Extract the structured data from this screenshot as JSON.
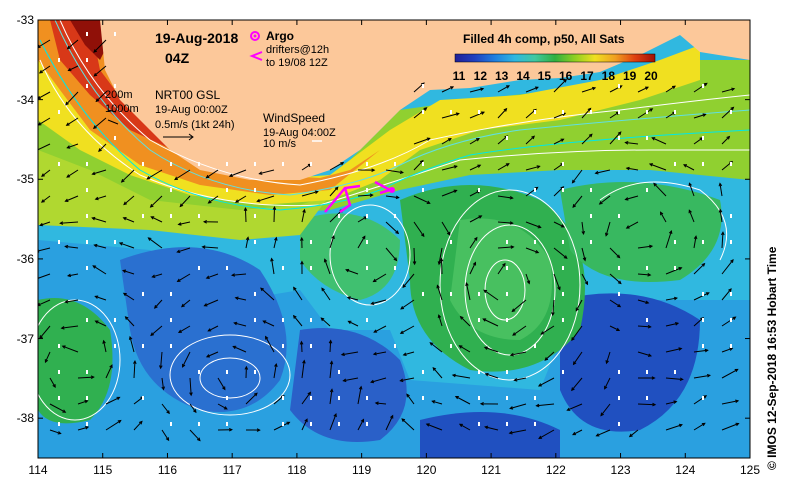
{
  "title": {
    "date": "19-Aug-2018",
    "hour": "04Z"
  },
  "legend": {
    "argo_label": "Argo",
    "drifters_label": "drifters@12h",
    "drifters_sub": "to 19/08 12Z",
    "argo_color": "#ff00ff",
    "drifter_color": "#ff00ff"
  },
  "contours": {
    "label_200": "200m",
    "label_1000": "1000m"
  },
  "currents": {
    "source": "NRT00 GSL",
    "time": "19-Aug 00:00Z",
    "scale": "0.5m/s (1kt 24h)"
  },
  "wind": {
    "title": "WindSpeed",
    "time": "19-Aug 04:00Z",
    "scale": "10 m/s"
  },
  "colorbar": {
    "title": "Filled 4h comp, p50, All Sats",
    "ticks": [
      "11",
      "12",
      "13",
      "14",
      "15",
      "16",
      "17",
      "18",
      "19",
      "20"
    ],
    "range": [
      11,
      20
    ],
    "colors": [
      "#2020a0",
      "#3040c8",
      "#3080e0",
      "#30b0e0",
      "#40c8a0",
      "#30b040",
      "#a0d020",
      "#f0e020",
      "#f09020",
      "#d03010",
      "#901000"
    ]
  },
  "axes": {
    "x_ticks": [
      "114",
      "115",
      "116",
      "117",
      "118",
      "119",
      "120",
      "121",
      "122",
      "123",
      "124",
      "125"
    ],
    "y_ticks": [
      "-33",
      "-34",
      "-35",
      "-36",
      "-37",
      "-38"
    ],
    "lon_range": [
      114,
      125
    ],
    "lat_range": [
      -38.5,
      -33
    ]
  },
  "land_color": "#fcc89a",
  "credit": "© IMOS 12-Sep-2018 16:53 Hobart Time"
}
